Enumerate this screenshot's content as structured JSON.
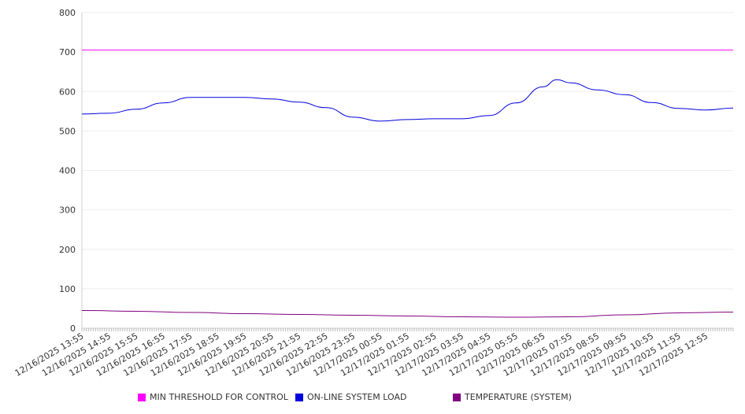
{
  "chart_data": {
    "type": "line",
    "title": "",
    "xlabel": "",
    "ylabel": "",
    "ylim": [
      0,
      800
    ],
    "yticks": [
      0,
      100,
      200,
      300,
      400,
      500,
      600,
      700,
      800
    ],
    "xlim_hours": [
      0,
      24
    ],
    "xtick_labels": [
      "12/16/2025 13:55",
      "12/16/2025 14:55",
      "12/16/2025 15:55",
      "12/16/2025 16:55",
      "12/16/2025 17:55",
      "12/16/2025 18:55",
      "12/16/2025 19:55",
      "12/16/2025 20:55",
      "12/16/2025 21:55",
      "12/16/2025 22:55",
      "12/16/2025 23:55",
      "12/17/2025 00:55",
      "12/17/2025 01:55",
      "12/17/2025 02:55",
      "12/17/2025 03:55",
      "12/17/2025 04:55",
      "12/17/2025 05:55",
      "12/17/2025 06:55",
      "12/17/2025 07:55",
      "12/17/2025 08:55",
      "12/17/2025 09:55",
      "12/17/2025 10:55",
      "12/17/2025 11:55",
      "12/17/2025 12:55"
    ],
    "grid": true,
    "legend_position": "bottom",
    "series": [
      {
        "name": "MIN THRESHOLD FOR CONTROL",
        "color": "#ff00ff",
        "x": [
          0,
          24
        ],
        "values": [
          705,
          705
        ]
      },
      {
        "name": "ON-LINE SYSTEM LOAD",
        "color": "#0000dd",
        "x": [
          0,
          1,
          2,
          3,
          4,
          5,
          6,
          7,
          8,
          9,
          10,
          11,
          12,
          13,
          14,
          15,
          16,
          17,
          17.5,
          18,
          19,
          20,
          21,
          22,
          23,
          24
        ],
        "values": [
          543,
          545,
          555,
          571,
          585,
          585,
          585,
          581,
          573,
          559,
          535,
          525,
          529,
          531,
          531,
          539,
          571,
          612,
          630,
          622,
          604,
          592,
          572,
          557,
          553,
          558
        ]
      },
      {
        "name": "TEMPERATURE (SYSTEM)",
        "color": "#800080",
        "x": [
          0,
          2,
          4,
          6,
          8,
          10,
          12,
          14,
          16,
          18,
          20,
          22,
          24
        ],
        "values": [
          45,
          43,
          40,
          37,
          35,
          33,
          31,
          29,
          28,
          29,
          34,
          39,
          41
        ]
      }
    ]
  }
}
